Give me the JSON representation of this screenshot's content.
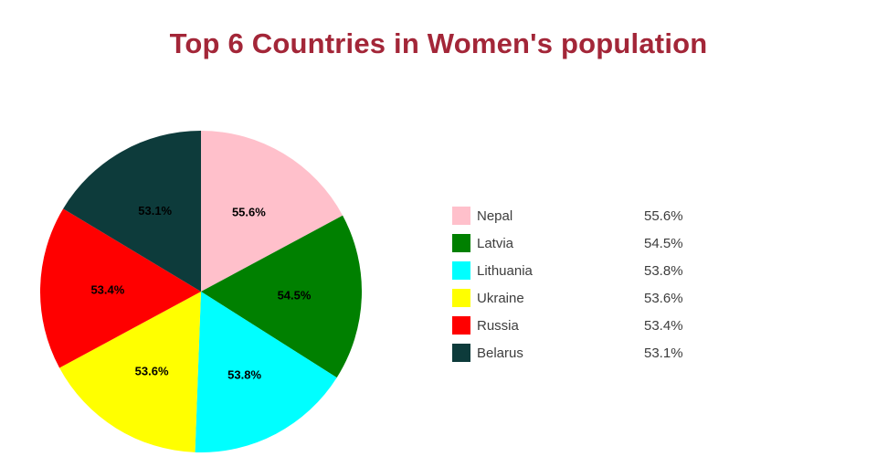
{
  "title_color": "#a32638",
  "chart_data": {
    "type": "pie",
    "title": "Top 6 Countries in Women's population",
    "labels": [
      "Nepal",
      "Latvia",
      "Lithuania",
      "Ukraine",
      "Russia",
      "Belarus"
    ],
    "values": [
      55.6,
      54.5,
      53.8,
      53.6,
      53.4,
      53.1
    ],
    "display_values": [
      "55.6%",
      "54.5%",
      "53.8%",
      "53.6%",
      "53.4%",
      "53.1%"
    ],
    "colors": [
      "#ffc0cb",
      "#008000",
      "#00ffff",
      "#ffff00",
      "#ff0000",
      "#0d3b3b"
    ],
    "start_angle_deg": 0,
    "direction": "clockwise",
    "legend_position": "right",
    "slice_label_format": "percent-inside",
    "background": "#ffffff"
  }
}
